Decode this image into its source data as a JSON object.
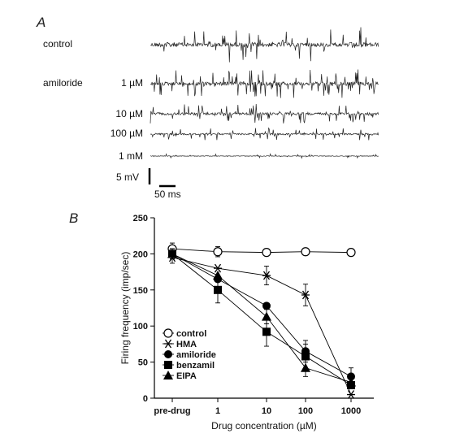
{
  "panel_a": {
    "letter": "A",
    "traces": [
      {
        "group": "control",
        "conc": "",
        "amplitude": 1.0,
        "density": 0.5
      },
      {
        "group": "amiloride",
        "conc": "1 µM",
        "amplitude": 0.8,
        "density": 0.95
      },
      {
        "group": "",
        "conc": "10 µM",
        "amplitude": 0.55,
        "density": 0.85
      },
      {
        "group": "",
        "conc": "100 µM",
        "amplitude": 0.35,
        "density": 0.85
      },
      {
        "group": "",
        "conc": "1 mM",
        "amplitude": 0.12,
        "density": 0.4
      }
    ],
    "scale_voltage": "5 mV",
    "scale_time": "50 ms"
  },
  "panel_b": {
    "letter": "B"
  },
  "chart_data": {
    "type": "line",
    "xlabel": "Drug concentration (µM)",
    "ylabel": "Firing frequency (imp/sec)",
    "categories": [
      "pre-drug",
      "1",
      "10",
      "100",
      "1000"
    ],
    "ylim": [
      0,
      250
    ],
    "yticks": [
      "0",
      "50",
      "100",
      "150",
      "200",
      "250"
    ],
    "legend_position": "bottom-left",
    "series": [
      {
        "name": "control",
        "marker": "open-circle",
        "values": [
          207,
          203,
          202,
          203,
          202
        ],
        "errors": [
          8,
          7,
          0,
          0,
          0
        ]
      },
      {
        "name": "HMA",
        "marker": "star",
        "values": [
          195,
          180,
          170,
          143,
          5
        ],
        "errors": [
          8,
          0,
          13,
          15,
          0
        ]
      },
      {
        "name": "amiloride",
        "marker": "filled-circle",
        "values": [
          200,
          165,
          128,
          65,
          30
        ],
        "errors": [
          7,
          0,
          0,
          15,
          12
        ]
      },
      {
        "name": "benzamil",
        "marker": "filled-square",
        "values": [
          200,
          150,
          92,
          58,
          18
        ],
        "errors": [
          7,
          18,
          20,
          17,
          0
        ]
      },
      {
        "name": "EIPA",
        "marker": "filled-triangle",
        "values": [
          200,
          170,
          113,
          42,
          22
        ],
        "errors": [
          7,
          0,
          10,
          12,
          0
        ]
      }
    ]
  }
}
